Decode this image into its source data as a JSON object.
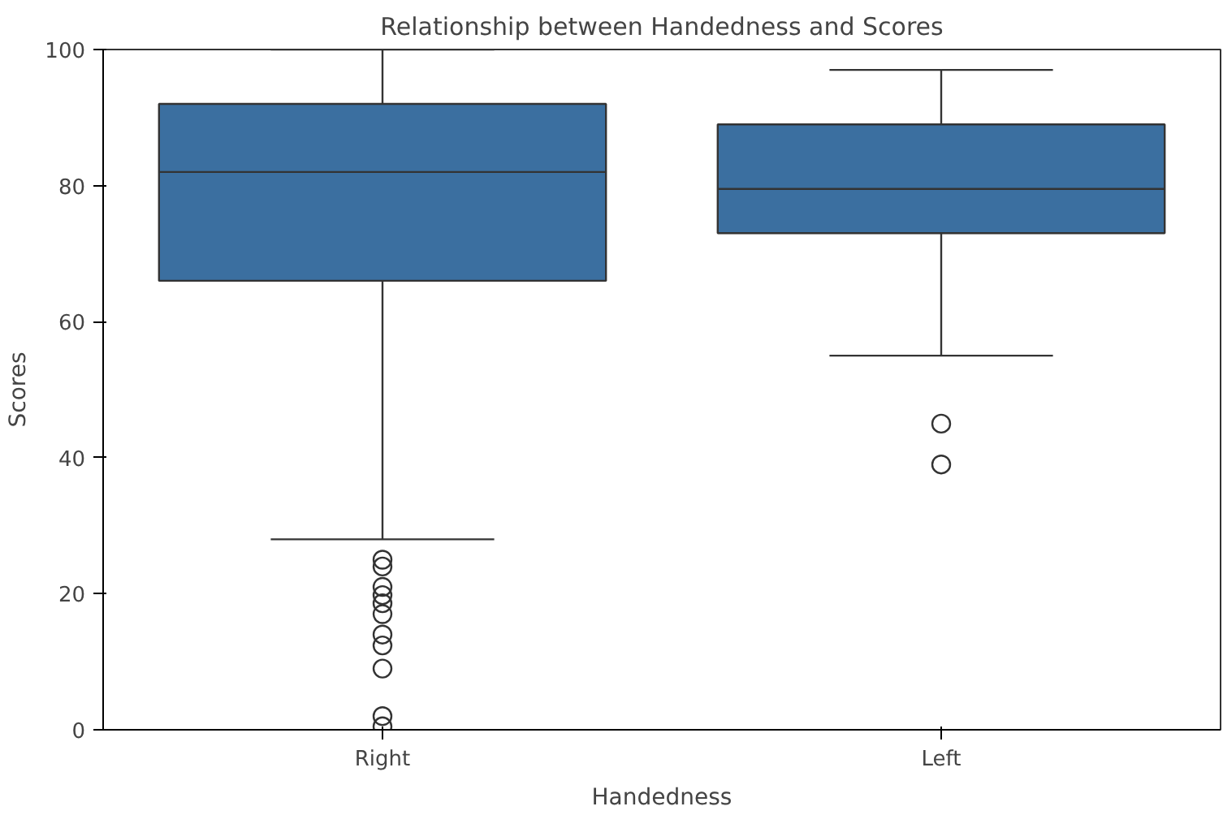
{
  "chart_data": {
    "type": "box",
    "title": "Relationship between Handedness and Scores",
    "xlabel": "Handedness",
    "ylabel": "Scores",
    "categories": [
      "Right",
      "Left"
    ],
    "color": "#3b6fa0",
    "marker": "circle",
    "boxes": [
      {
        "low": 28,
        "q1": 66,
        "median": 82,
        "q3": 92,
        "high": 100,
        "outliers": [
          25,
          24,
          21,
          19.8,
          18.6,
          17,
          14,
          12.4,
          9,
          2,
          0.5
        ]
      },
      {
        "low": 55,
        "q1": 73,
        "median": 79.5,
        "q3": 89,
        "high": 97,
        "outliers": [
          45,
          39
        ]
      }
    ],
    "ylim": [
      0,
      100
    ],
    "yticks": [
      0,
      20,
      40,
      60,
      80,
      100
    ],
    "grid": false
  }
}
